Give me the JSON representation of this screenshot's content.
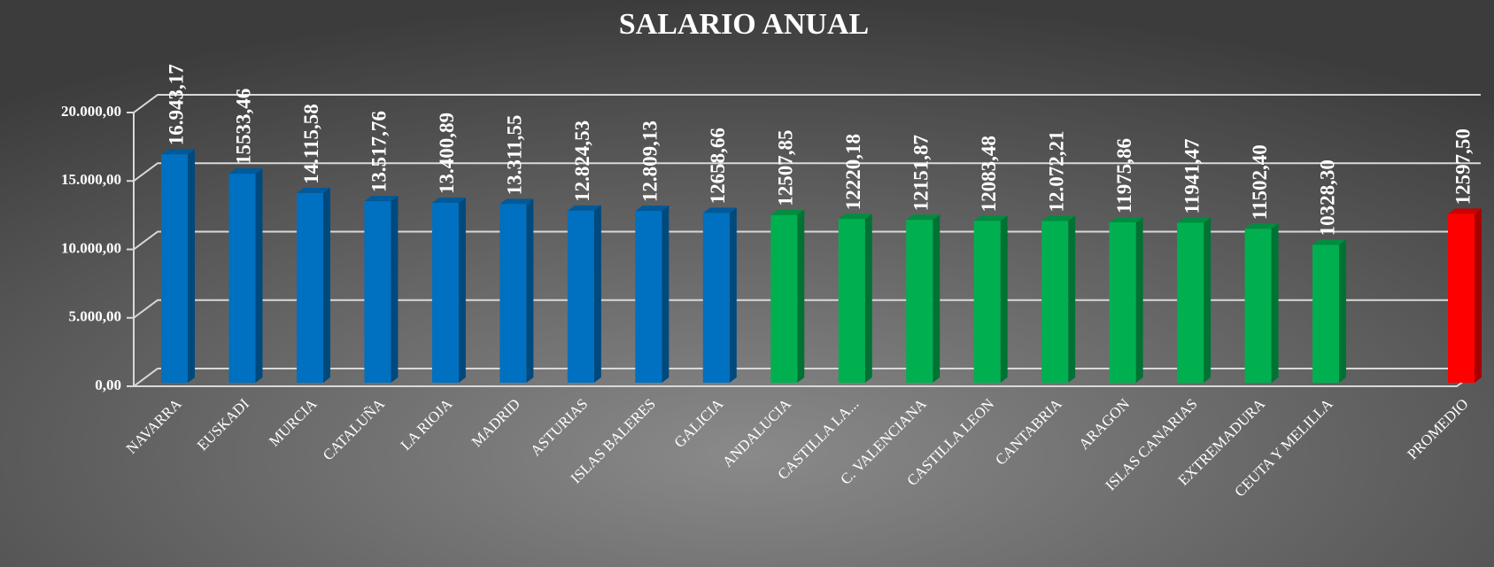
{
  "chart_data": {
    "type": "bar3d",
    "title": "SALARIO ANUAL",
    "categories": [
      "NAVARRA",
      "EUSKADI",
      "MURCIA",
      "CATALUÑA",
      "LA RIOJA",
      "MADRID",
      "ASTURIAS",
      "ISLAS BALERES",
      "GALICIA",
      "ANDALUCIA",
      "CASTILLA LA...",
      "C. VALENCIANA",
      "CASTILLA LEON",
      "CANTABRIA",
      "ARAGON",
      "ISLAS CANARIAS",
      "EXTREMADURA",
      "CEUTA Y MELILLA",
      null,
      "PROMEDIO"
    ],
    "values": [
      16943.17,
      15533.46,
      14115.58,
      13517.76,
      13400.89,
      13311.55,
      12824.53,
      12809.13,
      12658.66,
      12507.85,
      12220.18,
      12151.87,
      12083.48,
      12072.21,
      11975.86,
      11941.47,
      11502.4,
      10328.3,
      null,
      12597.5
    ],
    "value_labels": [
      "16.943,17",
      "15533,46",
      "14.115,58",
      "13.517,76",
      "13.400,89",
      "13.311,55",
      "12.824,53",
      "12.809,13",
      "12658,66",
      "12507,85",
      "12220,18",
      "12151,87",
      "12083,48",
      "12.072,21",
      "11975,86",
      "11941,47",
      "11502,40",
      "10328,30",
      null,
      "12597,50"
    ],
    "colors": [
      "#0070c0",
      "#0070c0",
      "#0070c0",
      "#0070c0",
      "#0070c0",
      "#0070c0",
      "#0070c0",
      "#0070c0",
      "#0070c0",
      "#00b050",
      "#00b050",
      "#00b050",
      "#00b050",
      "#00b050",
      "#00b050",
      "#00b050",
      "#00b050",
      "#00b050",
      null,
      "#ff0000"
    ],
    "ylim": [
      0,
      20000
    ],
    "yticks": [
      {
        "value": 0,
        "label": "0,00"
      },
      {
        "value": 5000,
        "label": "5.000,00"
      },
      {
        "value": 10000,
        "label": "10.000,00"
      },
      {
        "value": 15000,
        "label": "15.000,00"
      },
      {
        "value": 20000,
        "label": "20.000,00"
      }
    ],
    "grid": true
  }
}
